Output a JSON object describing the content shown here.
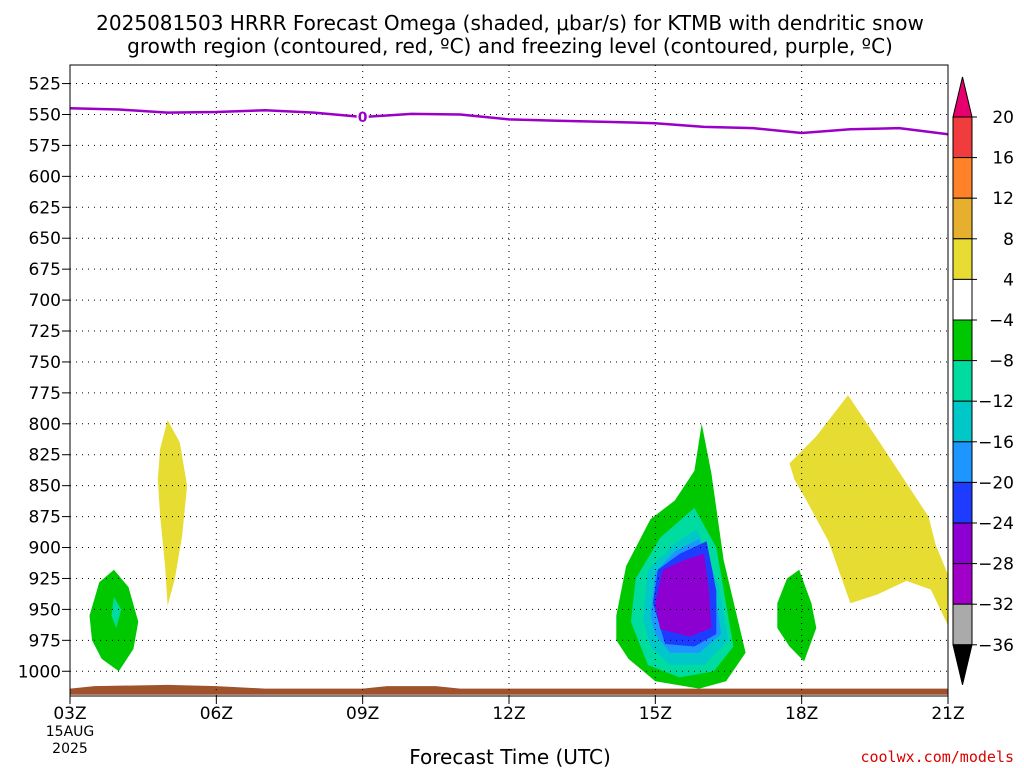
{
  "chart_data": {
    "type": "heatmap",
    "title_line1": "2025081503 HRRR Forecast Omega (shaded, μbar/s) for KTMB with dendritic snow",
    "title_line2": "growth region (contoured, red, ºC) and freezing level (contoured, purple, ºC)",
    "xlabel": "Forecast Time (UTC)",
    "x_ticks": [
      "03Z",
      "06Z",
      "09Z",
      "12Z",
      "15Z",
      "18Z",
      "21Z"
    ],
    "x_date_line1": "15AUG",
    "x_date_line2": "2025",
    "xlim_hours": [
      3,
      21
    ],
    "y_ticks": [
      525,
      550,
      575,
      600,
      625,
      650,
      675,
      700,
      725,
      750,
      775,
      800,
      825,
      850,
      875,
      900,
      925,
      950,
      975,
      1000
    ],
    "ylim_hpa": [
      510,
      1020
    ],
    "grid": true,
    "freezing_level": {
      "color": "#9a00c8",
      "label": "0",
      "label_hour": 9,
      "points": [
        [
          3,
          545
        ],
        [
          4,
          546
        ],
        [
          5,
          548.5
        ],
        [
          6,
          548
        ],
        [
          7,
          546.5
        ],
        [
          8,
          548.5
        ],
        [
          9,
          552
        ],
        [
          10,
          549.5
        ],
        [
          11,
          550
        ],
        [
          12,
          554
        ],
        [
          13,
          555
        ],
        [
          14,
          556
        ],
        [
          15,
          557
        ],
        [
          16,
          560
        ],
        [
          17,
          561
        ],
        [
          18,
          565
        ],
        [
          19,
          562
        ],
        [
          20,
          561
        ],
        [
          21,
          566
        ]
      ]
    },
    "surface": {
      "color": "#a0522d",
      "points": [
        [
          3,
          1014
        ],
        [
          3.5,
          1012
        ],
        [
          5,
          1011
        ],
        [
          6,
          1012
        ],
        [
          7,
          1014
        ],
        [
          9,
          1014
        ],
        [
          9.5,
          1012
        ],
        [
          10.5,
          1012
        ],
        [
          11,
          1014
        ],
        [
          21,
          1014
        ]
      ],
      "bottom": 1019
    },
    "omega_regions": [
      {
        "level": -6,
        "color": "#00c800",
        "points": [
          [
            3.4,
            955
          ],
          [
            3.6,
            928
          ],
          [
            3.9,
            918
          ],
          [
            4.2,
            932
          ],
          [
            4.4,
            960
          ],
          [
            4.3,
            982
          ],
          [
            4.0,
            1000
          ],
          [
            3.65,
            990
          ],
          [
            3.45,
            975
          ]
        ]
      },
      {
        "level": -10,
        "color": "#00dca0",
        "points": [
          [
            3.9,
            940
          ],
          [
            4.05,
            950
          ],
          [
            3.95,
            965
          ],
          [
            3.85,
            955
          ]
        ]
      },
      {
        "level": 6,
        "color": "#e6dc32",
        "points": [
          [
            4.85,
            820
          ],
          [
            5.0,
            797
          ],
          [
            5.25,
            815
          ],
          [
            5.4,
            850
          ],
          [
            5.3,
            890
          ],
          [
            5.15,
            925
          ],
          [
            5.0,
            947
          ],
          [
            4.95,
            915
          ],
          [
            4.85,
            875
          ],
          [
            4.8,
            845
          ]
        ]
      },
      {
        "level": -6,
        "color": "#00c800",
        "points": [
          [
            14.2,
            955
          ],
          [
            14.4,
            915
          ],
          [
            14.9,
            877
          ],
          [
            15.4,
            862
          ],
          [
            15.8,
            838
          ],
          [
            15.95,
            800
          ],
          [
            16.15,
            840
          ],
          [
            16.4,
            910
          ],
          [
            16.85,
            985
          ],
          [
            16.45,
            1008
          ],
          [
            15.9,
            1014
          ],
          [
            15.0,
            1008
          ],
          [
            14.45,
            990
          ],
          [
            14.2,
            975
          ]
        ]
      },
      {
        "level": -10,
        "color": "#00dca0",
        "points": [
          [
            14.5,
            960
          ],
          [
            14.6,
            925
          ],
          [
            15.1,
            892
          ],
          [
            15.8,
            868
          ],
          [
            16.25,
            900
          ],
          [
            16.6,
            980
          ],
          [
            16.2,
            1000
          ],
          [
            15.5,
            1005
          ],
          [
            14.85,
            995
          ]
        ]
      },
      {
        "level": -14,
        "color": "#00c8c8",
        "points": [
          [
            14.75,
            958
          ],
          [
            14.85,
            918
          ],
          [
            15.35,
            898
          ],
          [
            15.85,
            885
          ],
          [
            16.3,
            930
          ],
          [
            16.5,
            975
          ],
          [
            16.0,
            995
          ],
          [
            15.3,
            995
          ],
          [
            14.9,
            980
          ]
        ]
      },
      {
        "level": -18,
        "color": "#1e96ff",
        "points": [
          [
            14.9,
            955
          ],
          [
            15.0,
            920
          ],
          [
            15.4,
            903
          ],
          [
            15.9,
            893
          ],
          [
            16.2,
            930
          ],
          [
            16.35,
            970
          ],
          [
            15.9,
            985
          ],
          [
            15.3,
            985
          ],
          [
            15.0,
            970
          ]
        ]
      },
      {
        "level": -22,
        "color": "#1e3cff",
        "points": [
          [
            14.95,
            945
          ],
          [
            15.05,
            918
          ],
          [
            15.5,
            905
          ],
          [
            16.05,
            895
          ],
          [
            16.25,
            935
          ],
          [
            16.25,
            970
          ],
          [
            15.8,
            980
          ],
          [
            15.2,
            978
          ]
        ]
      },
      {
        "level": -26,
        "color": "#8c00d2",
        "points": [
          [
            15.0,
            945
          ],
          [
            15.15,
            918
          ],
          [
            15.6,
            910
          ],
          [
            16.0,
            905
          ],
          [
            16.1,
            935
          ],
          [
            16.15,
            965
          ],
          [
            15.7,
            972
          ],
          [
            15.1,
            966
          ]
        ]
      },
      {
        "level": -6,
        "color": "#00c800",
        "points": [
          [
            17.5,
            945
          ],
          [
            17.7,
            925
          ],
          [
            17.95,
            918
          ],
          [
            18.2,
            945
          ],
          [
            18.3,
            965
          ],
          [
            18.05,
            992
          ],
          [
            17.75,
            980
          ],
          [
            17.5,
            965
          ]
        ]
      },
      {
        "level": 6,
        "color": "#e6dc32",
        "points": [
          [
            17.75,
            832
          ],
          [
            18.3,
            810
          ],
          [
            18.95,
            777
          ],
          [
            19.6,
            815
          ],
          [
            20.15,
            848
          ],
          [
            20.6,
            875
          ],
          [
            20.75,
            898
          ],
          [
            21,
            922
          ],
          [
            21,
            963
          ],
          [
            20.65,
            934
          ],
          [
            20.15,
            927
          ],
          [
            19.55,
            938
          ],
          [
            19.0,
            945
          ],
          [
            18.55,
            895
          ],
          [
            18.1,
            862
          ],
          [
            17.85,
            845
          ]
        ]
      }
    ]
  },
  "colorbar": {
    "labels": [
      "20",
      "16",
      "12",
      "8",
      "4",
      "−4",
      "−8",
      "−12",
      "−16",
      "−20",
      "−24",
      "−28",
      "−32",
      "−36"
    ],
    "colors": [
      "#f03c3c",
      "#ff8228",
      "#e6af2d",
      "#e6dc32",
      "#ffffff",
      "#00c800",
      "#00dca0",
      "#00c8c8",
      "#1e96ff",
      "#1e3cff",
      "#8c00d2",
      "#a000c8",
      "#aaaaaa"
    ],
    "top_color": "#e6006e",
    "bottom_color": "#000000"
  },
  "credit": "coolwx.com/models",
  "credit_color": "#dc0000"
}
